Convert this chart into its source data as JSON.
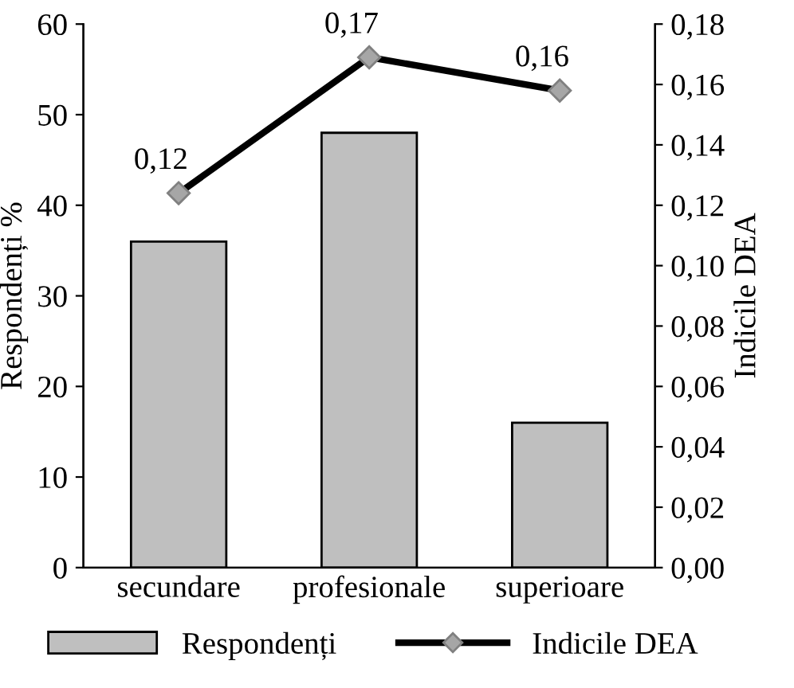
{
  "chart_data": {
    "type": "bar",
    "categories": [
      "secundare",
      "profesionale",
      "superioare"
    ],
    "ylabel": "Respondenți %",
    "y2label": "Indicile DEA",
    "ylim": [
      0,
      60
    ],
    "yticks": [
      0,
      10,
      20,
      30,
      40,
      50,
      60
    ],
    "y2lim": [
      0,
      0.18
    ],
    "y2ticks": [
      {
        "value": 0,
        "label": "0,00"
      },
      {
        "value": 0.02,
        "label": "0,02"
      },
      {
        "value": 0.04,
        "label": "0,04"
      },
      {
        "value": 0.06,
        "label": "0,06"
      },
      {
        "value": 0.08,
        "label": "0,08"
      },
      {
        "value": 0.1,
        "label": "0,10"
      },
      {
        "value": 0.12,
        "label": "0,12"
      },
      {
        "value": 0.14,
        "label": "0,14"
      },
      {
        "value": 0.16,
        "label": "0,16"
      },
      {
        "value": 0.18,
        "label": "0,18"
      }
    ],
    "grid": false,
    "legend": "bottom",
    "series": [
      {
        "name": "Respondenți",
        "color": "#bfbfbf",
        "values": [
          36,
          48,
          16
        ]
      },
      {
        "name": "Indicile DEA",
        "type": "line",
        "axis": "y2",
        "color": "#000000",
        "marker": "diamond",
        "values": [
          0.124,
          0.169,
          0.158
        ],
        "value_labels": [
          "0,12",
          "0,17",
          "0,16"
        ]
      }
    ]
  }
}
